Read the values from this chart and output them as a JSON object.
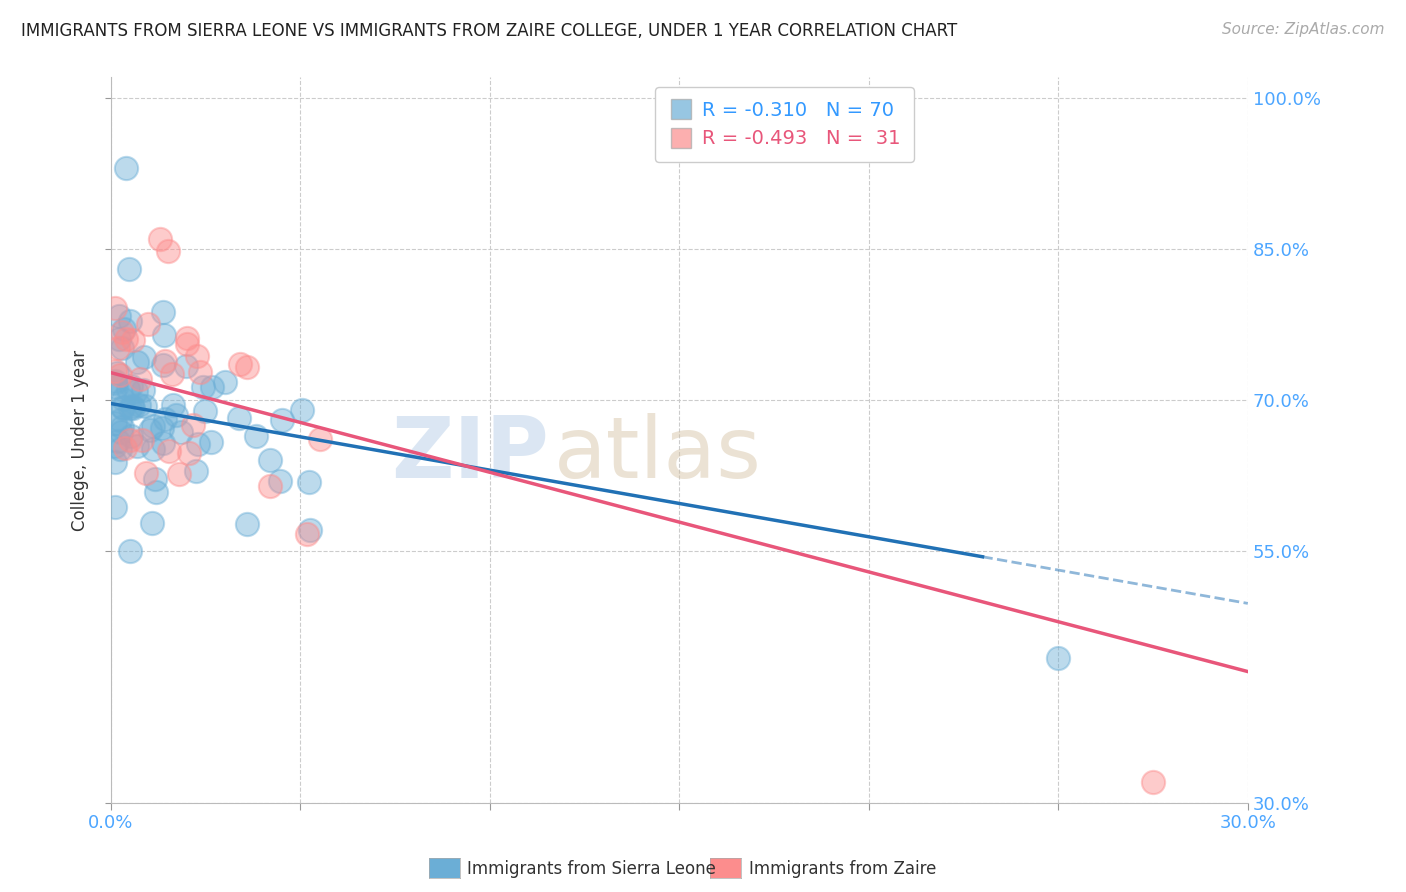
{
  "title": "IMMIGRANTS FROM SIERRA LEONE VS IMMIGRANTS FROM ZAIRE COLLEGE, UNDER 1 YEAR CORRELATION CHART",
  "source": "Source: ZipAtlas.com",
  "ylabel": "College, Under 1 year",
  "r_sierra": -0.31,
  "n_sierra": 70,
  "r_zaire": -0.493,
  "n_zaire": 31,
  "color_sierra": "#6baed6",
  "color_zaire": "#fc8d8d",
  "color_sierra_line": "#2171b5",
  "color_zaire_line": "#e8567a",
  "legend_label_sierra": "Immigrants from Sierra Leone",
  "legend_label_zaire": "Immigrants from Zaire",
  "xlim": [
    0.0,
    0.3
  ],
  "ylim": [
    0.3,
    1.02
  ],
  "watermark_zip": "ZIP",
  "watermark_atlas": "atlas",
  "background_color": "#ffffff",
  "grid_color": "#cccccc",
  "right_ytick_labels": [
    "100.0%",
    "85.0%",
    "70.0%",
    "55.0%",
    "30.0%"
  ],
  "right_ytick_vals": [
    1.0,
    0.85,
    0.7,
    0.55,
    0.3
  ],
  "grid_yticks": [
    1.0,
    0.85,
    0.7,
    0.55,
    0.3
  ]
}
